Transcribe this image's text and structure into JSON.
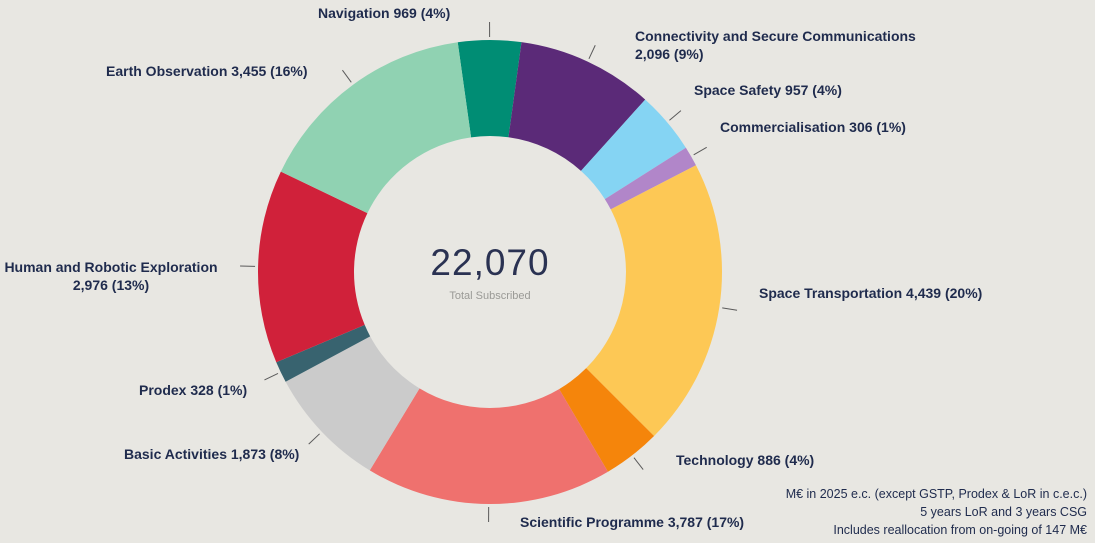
{
  "chart_data": {
    "type": "pie",
    "subtype": "donut",
    "start_angle_deg": -8,
    "total": 22070,
    "center": {
      "value": "22,070",
      "label": "Total Subscribed"
    },
    "segments": [
      {
        "id": "navigation",
        "label": "Navigation",
        "value": 969,
        "percent": "4%",
        "label_lines": [
          "Navigation 969 (4%)"
        ],
        "color": "#008d74"
      },
      {
        "id": "connectivity",
        "label": "Connectivity and Secure Communications",
        "value": 2096,
        "percent": "9%",
        "label_lines": [
          "Connectivity and Secure Communications",
          "2,096 (9%)"
        ],
        "color": "#5b2a78"
      },
      {
        "id": "space-safety",
        "label": "Space Safety",
        "value": 957,
        "percent": "4%",
        "label_lines": [
          "Space Safety 957 (4%)"
        ],
        "color": "#85d4f3"
      },
      {
        "id": "commercialisation",
        "label": "Commercialisation",
        "value": 306,
        "percent": "1%",
        "label_lines": [
          "Commercialisation 306 (1%)"
        ],
        "color": "#b186c9"
      },
      {
        "id": "space-transportation",
        "label": "Space Transportation",
        "value": 4439,
        "percent": "20%",
        "label_lines": [
          "Space Transportation 4,439 (20%)"
        ],
        "color": "#fdc855"
      },
      {
        "id": "technology",
        "label": "Technology",
        "value": 886,
        "percent": "4%",
        "label_lines": [
          "Technology 886 (4%)"
        ],
        "color": "#f5850b"
      },
      {
        "id": "scientific-programme",
        "label": "Scientific Programme",
        "value": 3787,
        "percent": "17%",
        "label_lines": [
          "Scientific Programme 3,787 (17%)"
        ],
        "color": "#ef716e"
      },
      {
        "id": "basic-activities",
        "label": "Basic Activities",
        "value": 1873,
        "percent": "8%",
        "label_lines": [
          "Basic Activities 1,873 (8%)"
        ],
        "color": "#cbcbcb"
      },
      {
        "id": "prodex",
        "label": "Prodex",
        "value": 328,
        "percent": "1%",
        "label_lines": [
          "Prodex 328 (1%)"
        ],
        "color": "#38636f"
      },
      {
        "id": "human-robotic-exploration",
        "label": "Human and Robotic Exploration",
        "value": 2976,
        "percent": "13%",
        "label_lines": [
          "Human and Robotic Exploration",
          "2,976 (13%)"
        ],
        "color": "#d0213a"
      },
      {
        "id": "earth-observation",
        "label": "Earth Observation",
        "value": 3455,
        "percent": "16%",
        "label_lines": [
          "Earth Observation 3,455 (16%)"
        ],
        "color": "#90d2b2"
      }
    ],
    "footnotes": [
      "M€ in 2025 e.c. (except GSTP, Prodex & LoR in c.e.c.)",
      "5 years LoR and 3 years CSG",
      "Includes reallocation from on-going of 147 M€"
    ]
  }
}
